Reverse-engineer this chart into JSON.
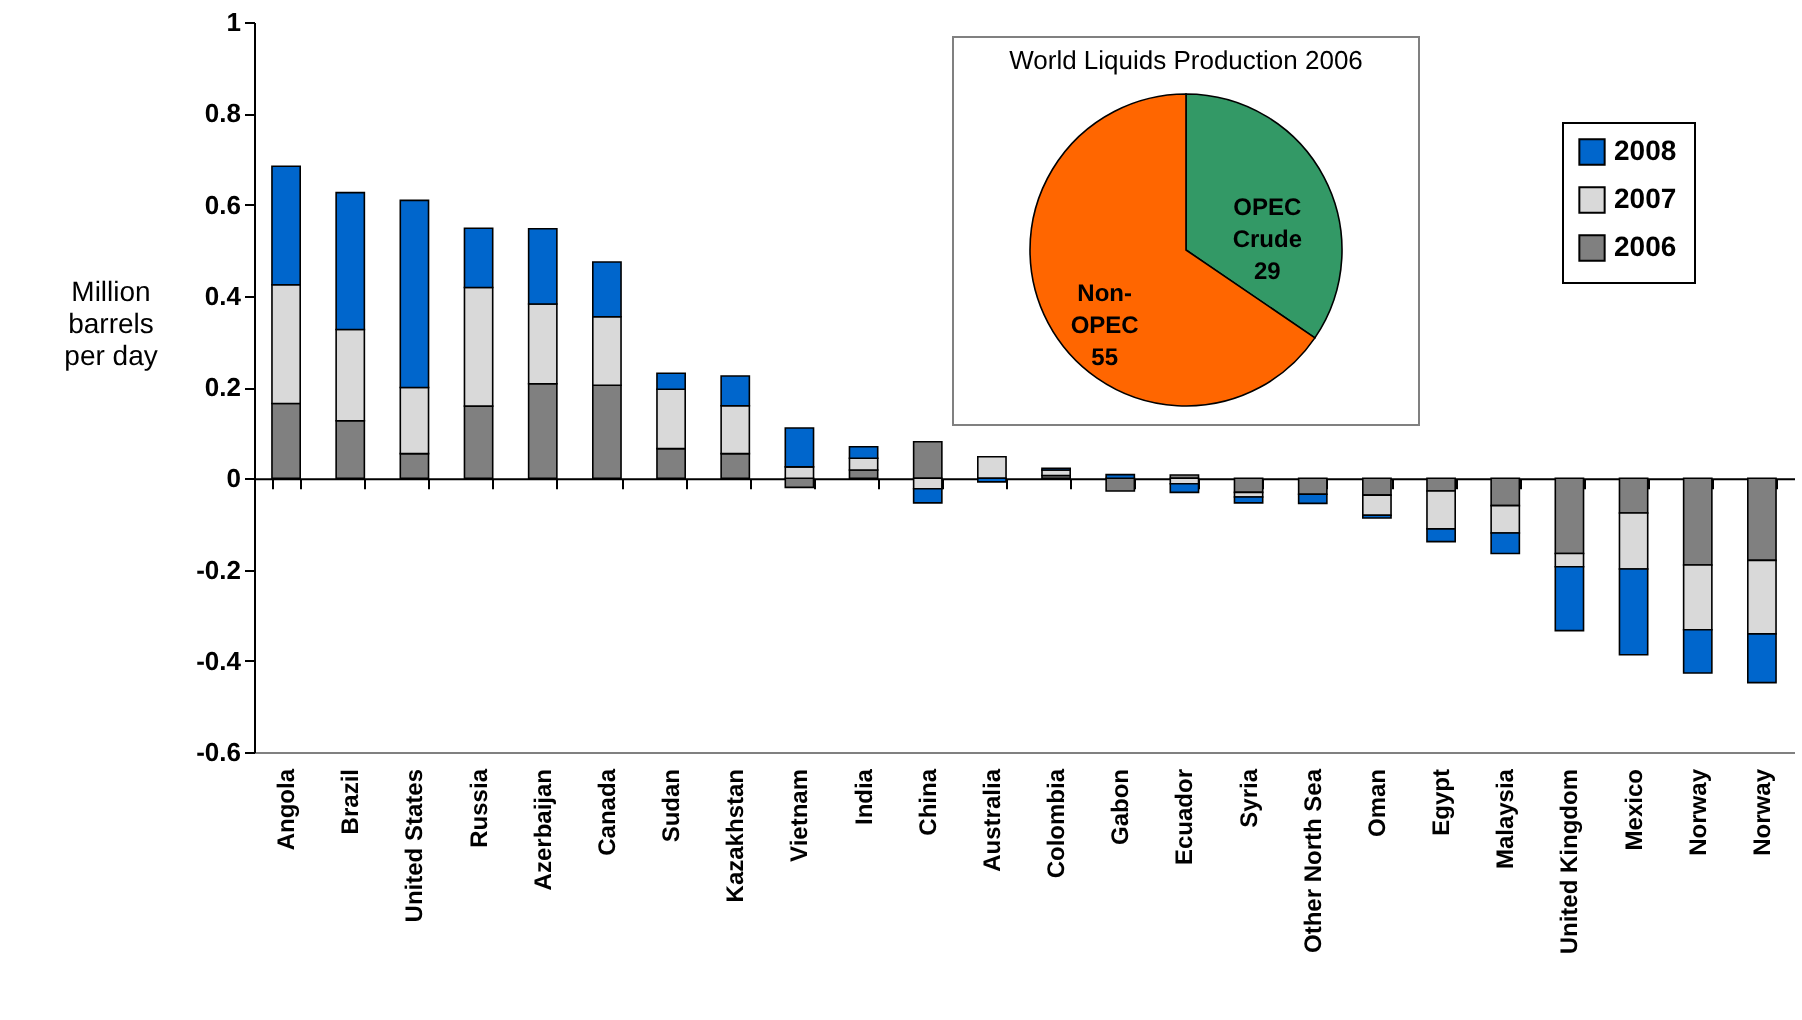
{
  "chart_data": [
    {
      "type": "bar",
      "stacked": true,
      "ylabel": "Million barrels per day",
      "categories": [
        "Angola",
        "Brazil",
        "United States",
        "Russia",
        "Azerbaijan",
        "Canada",
        "Sudan",
        "Kazakhstan",
        "Vietnam",
        "India",
        "China",
        "Australia",
        "Colombia",
        "Gabon",
        "Ecuador",
        "Syria",
        "Other North Sea",
        "Oman",
        "Egypt",
        "Malaysia",
        "United Kingdom",
        "Mexico",
        "Norway",
        "Norway"
      ],
      "series": [
        {
          "name": "2006",
          "color": "#808080",
          "values": [
            0.164,
            0.126,
            0.054,
            0.158,
            0.207,
            0.204,
            0.065,
            0.054,
            -0.02,
            0.018,
            0.08,
            null,
            0.006,
            -0.028,
            0.007,
            -0.031,
            -0.035,
            -0.037,
            -0.028,
            -0.06,
            -0.165,
            -0.076,
            -0.19,
            -0.18
          ]
        },
        {
          "name": "2007",
          "color": "#d9d9d9",
          "values": [
            0.26,
            0.2,
            0.145,
            0.26,
            0.175,
            0.15,
            0.13,
            0.105,
            0.025,
            0.026,
            -0.023,
            0.047,
            0.012,
            null,
            -0.012,
            -0.01,
            null,
            -0.044,
            -0.083,
            -0.06,
            -0.029,
            -0.123,
            -0.142,
            -0.161
          ]
        },
        {
          "name": "2008",
          "color": "#0066cc",
          "values": [
            0.26,
            0.3,
            0.41,
            0.13,
            0.165,
            0.12,
            0.035,
            0.065,
            0.085,
            0.025,
            -0.031,
            -0.008,
            0.004,
            0.008,
            -0.019,
            -0.013,
            -0.02,
            -0.006,
            -0.028,
            -0.045,
            -0.14,
            -0.188,
            -0.095,
            -0.107
          ]
        }
      ],
      "ylim": [
        -0.6,
        1
      ],
      "yticks": [
        -0.6,
        -0.4,
        -0.2,
        0,
        0.2,
        0.4,
        0.6,
        0.8,
        1
      ],
      "legend": "top right"
    },
    {
      "type": "pie",
      "title": "World Liquids Production 2006",
      "categories": [
        "OPEC Crude",
        "Non-OPEC"
      ],
      "values": [
        29,
        55
      ],
      "colors": [
        "#339966",
        "#ff6600"
      ],
      "data_labels": true
    }
  ]
}
